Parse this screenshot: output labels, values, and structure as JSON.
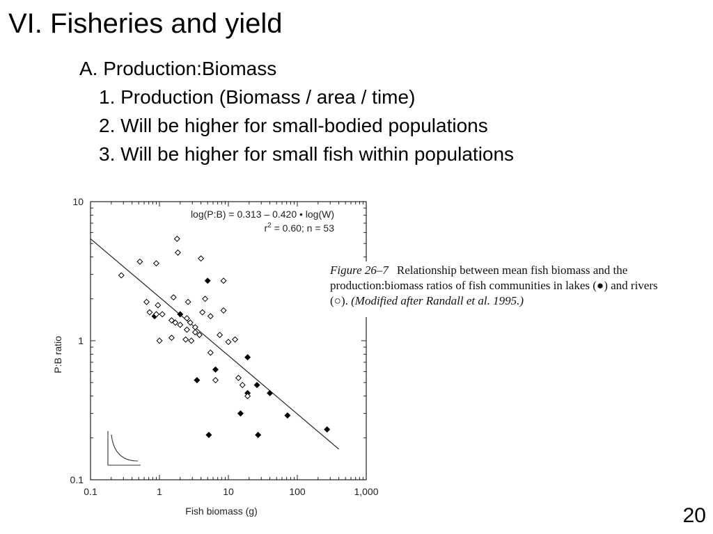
{
  "slide": {
    "title": "VI. Fisheries and yield",
    "outline_a": "A.  Production:Biomass",
    "items": [
      "1. Production (Biomass / area / time)",
      "2. Will be higher for small-bodied populations",
      "3. Will be higher for small fish within populations"
    ],
    "page_number": "20"
  },
  "caption": {
    "label": "Figure 26–7",
    "text_1": "Relationship between mean fish biomass and the production:biomass ratios of fish communities in lakes (",
    "lake_symbol": "●",
    "text_2": ") and rivers (",
    "river_symbol": "○",
    "text_3": ").",
    "citation": "(Modified after Randall et al. 1995.)"
  },
  "chart_data": {
    "type": "scatter",
    "xlabel": "Fish biomass (g)",
    "ylabel": "P:B ratio",
    "x_scale": "log",
    "y_scale": "log",
    "xlim": [
      0.1,
      1000
    ],
    "ylim": [
      0.1,
      10
    ],
    "x_ticks": [
      0.1,
      1,
      10,
      100,
      1000
    ],
    "x_tick_labels": [
      "0.1",
      "1",
      "10",
      "100",
      "1,000"
    ],
    "y_ticks": [
      0.1,
      1,
      10
    ],
    "y_tick_labels": [
      "0.1",
      "1",
      "10"
    ],
    "equation": {
      "line1": "log(P:B) = 0.313 – 0.420 • log(W)",
      "r_text": "r",
      "r_exp": "2",
      "line2_rest": " = 0.60; n = 53"
    },
    "regression": {
      "intercept": 0.313,
      "slope": -0.42,
      "x_range": [
        0.1,
        400
      ]
    },
    "grid": false,
    "series": [
      {
        "name": "lakes",
        "marker": "filled-diamond",
        "color": "#000000",
        "points": [
          [
            0.85,
            1.5
          ],
          [
            2.0,
            1.55
          ],
          [
            5.0,
            2.7
          ],
          [
            3.5,
            0.52
          ],
          [
            6.5,
            0.62
          ],
          [
            19,
            0.76
          ],
          [
            26,
            0.48
          ],
          [
            19,
            0.42
          ],
          [
            40,
            0.42
          ],
          [
            15,
            0.3
          ],
          [
            27,
            0.21
          ],
          [
            72,
            0.29
          ],
          [
            270,
            0.23
          ],
          [
            5.2,
            0.21
          ]
        ]
      },
      {
        "name": "rivers",
        "marker": "open-diamond",
        "color": "#000000",
        "points": [
          [
            0.28,
            2.95
          ],
          [
            0.52,
            3.7
          ],
          [
            0.9,
            3.6
          ],
          [
            1.8,
            5.4
          ],
          [
            1.85,
            4.3
          ],
          [
            4.0,
            3.9
          ],
          [
            8.5,
            2.7
          ],
          [
            0.65,
            1.9
          ],
          [
            0.72,
            1.6
          ],
          [
            0.95,
            1.8
          ],
          [
            0.9,
            1.55
          ],
          [
            1.6,
            2.05
          ],
          [
            2.6,
            1.9
          ],
          [
            4.2,
            1.6
          ],
          [
            4.6,
            2.0
          ],
          [
            5.5,
            1.5
          ],
          [
            8.5,
            1.65
          ],
          [
            1.1,
            1.55
          ],
          [
            1.5,
            1.4
          ],
          [
            1.7,
            1.35
          ],
          [
            2.5,
            1.45
          ],
          [
            2.8,
            1.35
          ],
          [
            3.3,
            1.25
          ],
          [
            1.5,
            1.05
          ],
          [
            2.0,
            1.3
          ],
          [
            2.5,
            1.2
          ],
          [
            3.3,
            1.15
          ],
          [
            3.8,
            1.1
          ],
          [
            7.5,
            1.1
          ],
          [
            10,
            0.98
          ],
          [
            12.5,
            1.02
          ],
          [
            1.0,
            1.0
          ],
          [
            2.4,
            1.02
          ],
          [
            2.9,
            1.0
          ],
          [
            5.5,
            0.82
          ],
          [
            14,
            0.54
          ],
          [
            16,
            0.48
          ],
          [
            19,
            0.4
          ],
          [
            6.5,
            0.52
          ]
        ]
      }
    ]
  }
}
